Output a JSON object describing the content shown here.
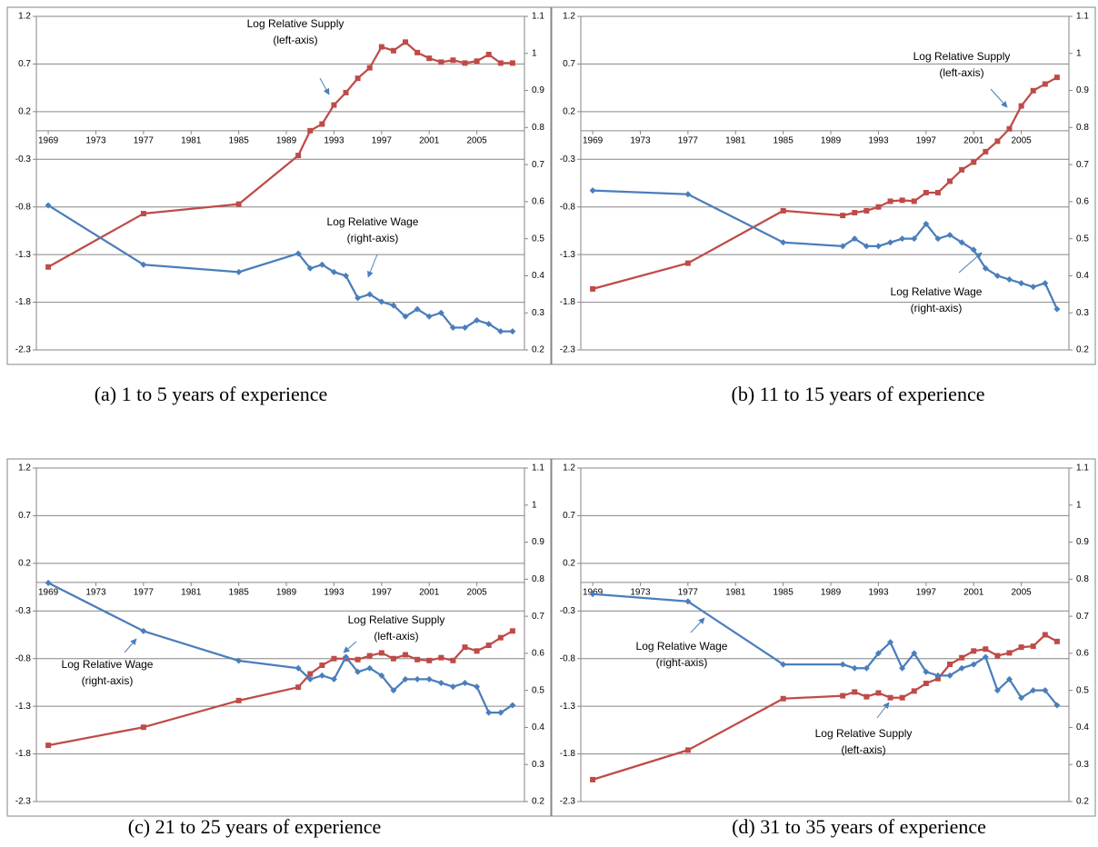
{
  "chart_data": [
    {
      "type": "line",
      "caption": "(a)  1 to 5 years of experience",
      "x": [
        1969,
        1977,
        1985,
        1990,
        1991,
        1992,
        1993,
        1994,
        1995,
        1996,
        1997,
        1998,
        1999,
        2000,
        2001,
        2002,
        2003,
        2004,
        2005,
        2006,
        2007,
        2008
      ],
      "xlim": [
        1968,
        2009
      ],
      "xticks": [
        1969,
        1973,
        1977,
        1981,
        1985,
        1989,
        1993,
        1997,
        2001,
        2005
      ],
      "ylim": [
        -2.3,
        1.2
      ],
      "yticks": [
        -2.3,
        -1.8,
        -1.3,
        -0.8,
        -0.3,
        0.2,
        0.7,
        1.2
      ],
      "y2lim": [
        0.2,
        1.1
      ],
      "y2ticks": [
        0.2,
        0.3,
        0.4,
        0.5,
        0.6,
        0.7,
        0.8,
        0.9,
        1,
        1.1
      ],
      "grid": true,
      "series": [
        {
          "name": "Log Relative Supply",
          "note": "(left-axis)",
          "color": "#be4b48",
          "marker": "square",
          "values": [
            -1.43,
            -0.87,
            -0.77,
            -0.26,
            0.0,
            0.07,
            0.27,
            0.4,
            0.55,
            0.66,
            0.88,
            0.84,
            0.93,
            0.82,
            0.76,
            0.72,
            0.74,
            0.71,
            0.73,
            0.8,
            0.71,
            0.71
          ]
        },
        {
          "name": "Log Relative Wage",
          "note": "(right-axis)",
          "color": "#4a7ebb",
          "marker": "diamond",
          "axis": "y2",
          "values": [
            0.59,
            0.43,
            0.41,
            0.46,
            0.42,
            0.43,
            0.41,
            0.4,
            0.34,
            0.35,
            0.33,
            0.32,
            0.29,
            0.31,
            0.29,
            0.3,
            0.26,
            0.26,
            0.28,
            0.27,
            0.25,
            0.25
          ]
        }
      ]
    },
    {
      "type": "line",
      "caption": "(b) 11 to 15 years of experience",
      "x": [
        1969,
        1977,
        1985,
        1990,
        1991,
        1992,
        1993,
        1994,
        1995,
        1996,
        1997,
        1998,
        1999,
        2000,
        2001,
        2002,
        2003,
        2004,
        2005,
        2006,
        2007,
        2008
      ],
      "xlim": [
        1968,
        2009
      ],
      "xticks": [
        1969,
        1973,
        1977,
        1981,
        1985,
        1989,
        1993,
        1997,
        2001,
        2005
      ],
      "ylim": [
        -2.3,
        1.2
      ],
      "yticks": [
        -2.3,
        -1.8,
        -1.3,
        -0.8,
        -0.3,
        0.2,
        0.7,
        1.2
      ],
      "y2lim": [
        0.2,
        1.1
      ],
      "y2ticks": [
        0.2,
        0.3,
        0.4,
        0.5,
        0.6,
        0.7,
        0.8,
        0.9,
        1,
        1.1
      ],
      "grid": true,
      "series": [
        {
          "name": "Log Relative Supply",
          "note": "(left-axis)",
          "color": "#be4b48",
          "marker": "square",
          "values": [
            -1.66,
            -1.39,
            -0.84,
            -0.89,
            -0.86,
            -0.84,
            -0.8,
            -0.74,
            -0.73,
            -0.74,
            -0.65,
            -0.65,
            -0.53,
            -0.41,
            -0.33,
            -0.22,
            -0.11,
            0.02,
            0.26,
            0.42,
            0.49,
            0.56
          ]
        },
        {
          "name": "Log Relative Wage",
          "note": "(right-axis)",
          "color": "#4a7ebb",
          "marker": "diamond",
          "axis": "y2",
          "values": [
            0.63,
            0.62,
            0.49,
            0.48,
            0.5,
            0.48,
            0.48,
            0.49,
            0.5,
            0.5,
            0.54,
            0.5,
            0.51,
            0.49,
            0.47,
            0.42,
            0.4,
            0.39,
            0.38,
            0.37,
            0.38,
            0.31
          ]
        }
      ]
    },
    {
      "type": "line",
      "caption": "(c)  21 to 25 years of experience",
      "x": [
        1969,
        1977,
        1985,
        1990,
        1991,
        1992,
        1993,
        1994,
        1995,
        1996,
        1997,
        1998,
        1999,
        2000,
        2001,
        2002,
        2003,
        2004,
        2005,
        2006,
        2007,
        2008
      ],
      "xlim": [
        1968,
        2009
      ],
      "xticks": [
        1969,
        1973,
        1977,
        1981,
        1985,
        1989,
        1993,
        1997,
        2001,
        2005
      ],
      "ylim": [
        -2.3,
        1.2
      ],
      "yticks": [
        -2.3,
        -1.8,
        -1.3,
        -0.8,
        -0.3,
        0.2,
        0.7,
        1.2
      ],
      "y2lim": [
        0.2,
        1.1
      ],
      "y2ticks": [
        0.2,
        0.3,
        0.4,
        0.5,
        0.6,
        0.7,
        0.8,
        0.9,
        1,
        1.1
      ],
      "grid": true,
      "series": [
        {
          "name": "Log Relative Supply",
          "note": "(left-axis)",
          "color": "#be4b48",
          "marker": "square",
          "values": [
            -1.71,
            -1.52,
            -1.24,
            -1.1,
            -0.96,
            -0.87,
            -0.8,
            -0.8,
            -0.81,
            -0.77,
            -0.74,
            -0.8,
            -0.76,
            -0.81,
            -0.82,
            -0.79,
            -0.82,
            -0.68,
            -0.72,
            -0.66,
            -0.58,
            -0.51
          ]
        },
        {
          "name": "Log Relative Wage",
          "note": "(right-axis)",
          "color": "#4a7ebb",
          "marker": "diamond",
          "axis": "y2",
          "values": [
            0.79,
            0.66,
            0.58,
            0.56,
            0.53,
            0.54,
            0.53,
            0.59,
            0.55,
            0.56,
            0.54,
            0.5,
            0.53,
            0.53,
            0.53,
            0.52,
            0.51,
            0.52,
            0.51,
            0.44,
            0.44,
            0.46
          ]
        }
      ]
    },
    {
      "type": "line",
      "caption": "(d) 31 to 35 years of experience",
      "x": [
        1969,
        1977,
        1985,
        1990,
        1991,
        1992,
        1993,
        1994,
        1995,
        1996,
        1997,
        1998,
        1999,
        2000,
        2001,
        2002,
        2003,
        2004,
        2005,
        2006,
        2007,
        2008
      ],
      "xlim": [
        1968,
        2009
      ],
      "xticks": [
        1969,
        1973,
        1977,
        1981,
        1985,
        1989,
        1993,
        1997,
        2001,
        2005
      ],
      "ylim": [
        -2.3,
        1.2
      ],
      "yticks": [
        -2.3,
        -1.8,
        -1.3,
        -0.8,
        -0.3,
        0.2,
        0.7,
        1.2
      ],
      "y2lim": [
        0.2,
        1.1
      ],
      "y2ticks": [
        0.2,
        0.3,
        0.4,
        0.5,
        0.6,
        0.7,
        0.8,
        0.9,
        1,
        1.1
      ],
      "grid": true,
      "series": [
        {
          "name": "Log Relative Supply",
          "note": "(left-axis)",
          "color": "#be4b48",
          "marker": "square",
          "values": [
            -2.07,
            -1.76,
            -1.22,
            -1.19,
            -1.15,
            -1.2,
            -1.16,
            -1.21,
            -1.21,
            -1.14,
            -1.06,
            -1.01,
            -0.86,
            -0.79,
            -0.72,
            -0.7,
            -0.77,
            -0.74,
            -0.68,
            -0.67,
            -0.55,
            -0.62
          ]
        },
        {
          "name": "Log Relative Wage",
          "note": "(right-axis)",
          "color": "#4a7ebb",
          "marker": "diamond",
          "axis": "y2",
          "values": [
            0.76,
            0.74,
            0.57,
            0.57,
            0.56,
            0.56,
            0.6,
            0.63,
            0.56,
            0.6,
            0.55,
            0.54,
            0.54,
            0.56,
            0.57,
            0.59,
            0.5,
            0.53,
            0.48,
            0.5,
            0.5,
            0.46
          ]
        }
      ]
    }
  ]
}
